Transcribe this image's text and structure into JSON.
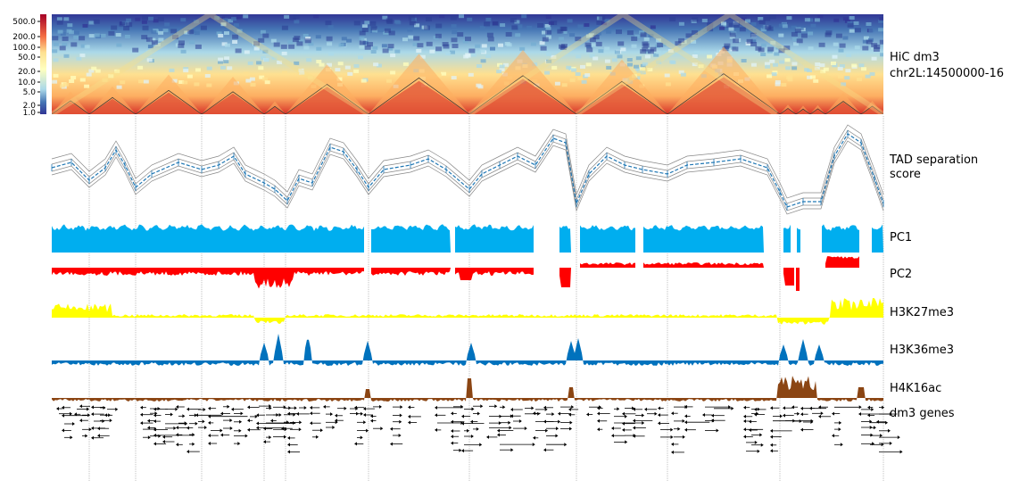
{
  "colorbar": {
    "ticks": [
      "500.0",
      "200.0",
      "100.0",
      "50.0",
      "20.0",
      "10.0",
      "5.0",
      "2.0",
      "1.0"
    ]
  },
  "tracks": {
    "hic": {
      "label_line1": "HiC dm3",
      "label_line2": "chr2L:14500000-16"
    },
    "tad": {
      "label_line1": "TAD separation",
      "label_line2": "score"
    },
    "pc1": {
      "label": "PC1",
      "color": "#00aeef"
    },
    "pc2": {
      "label": "PC2",
      "color": "#ff0000"
    },
    "h3k27me3": {
      "label": "H3K27me3",
      "color": "#ffff00"
    },
    "h3k36me3": {
      "label": "H3K36me3",
      "color": "#0072bd"
    },
    "h4k16ac": {
      "label": "H4K16ac",
      "color": "#8b4513"
    },
    "genes": {
      "label": "dm3 genes"
    }
  }
}
